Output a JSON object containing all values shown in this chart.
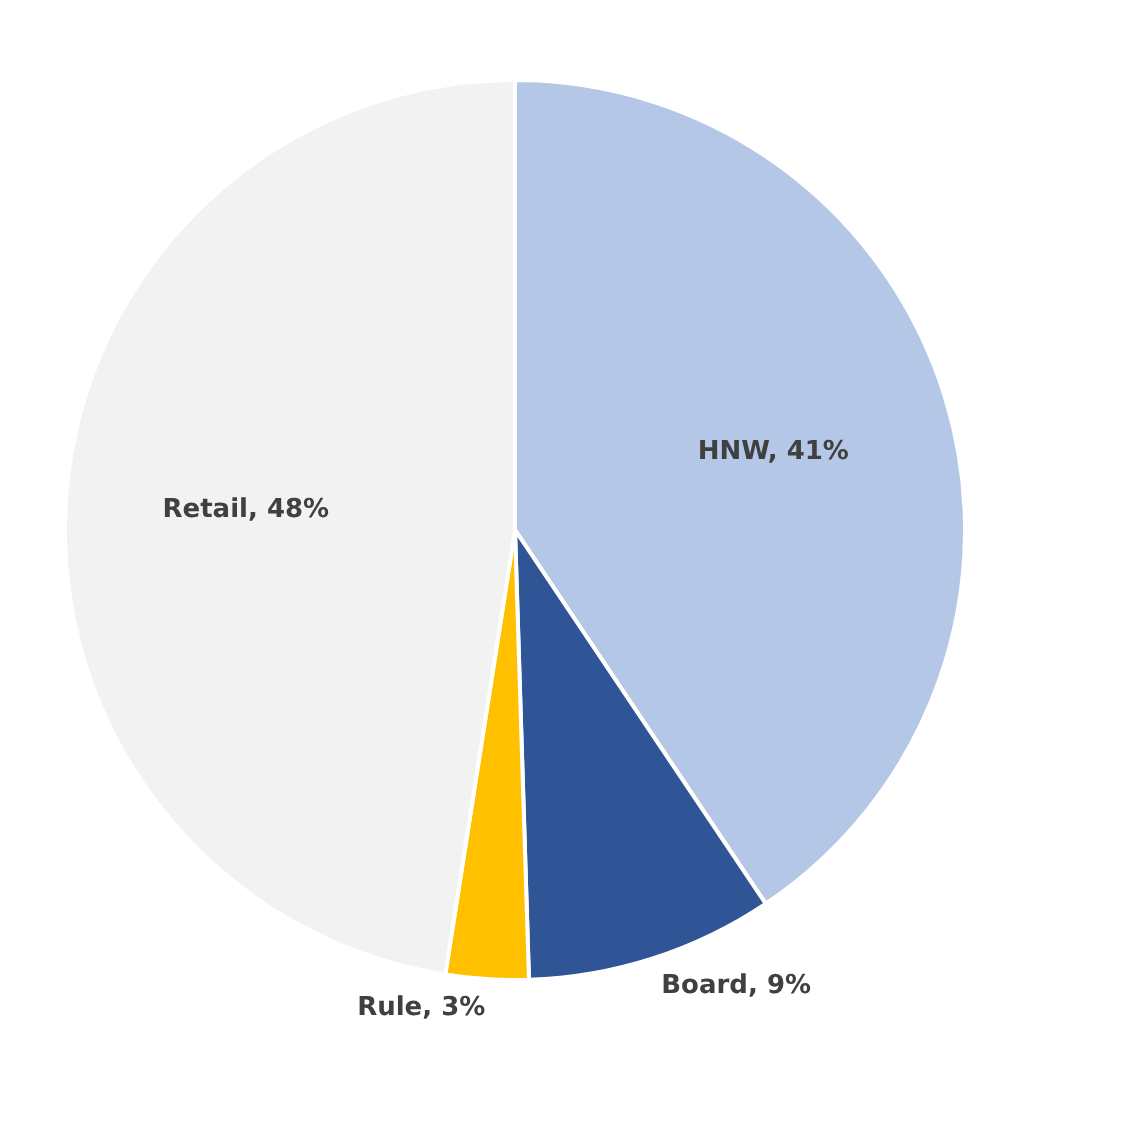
{
  "chart_data": {
    "type": "pie",
    "categories": [
      "HNW",
      "Board",
      "Rule",
      "Retail"
    ],
    "values": [
      41,
      9,
      3,
      48
    ],
    "value_labels": [
      "41%",
      "9%",
      "3%",
      "48%"
    ],
    "colors": [
      "#b4c7e7",
      "#2f5597",
      "#ffc000",
      "#f2f2f2"
    ],
    "legend": false
  }
}
